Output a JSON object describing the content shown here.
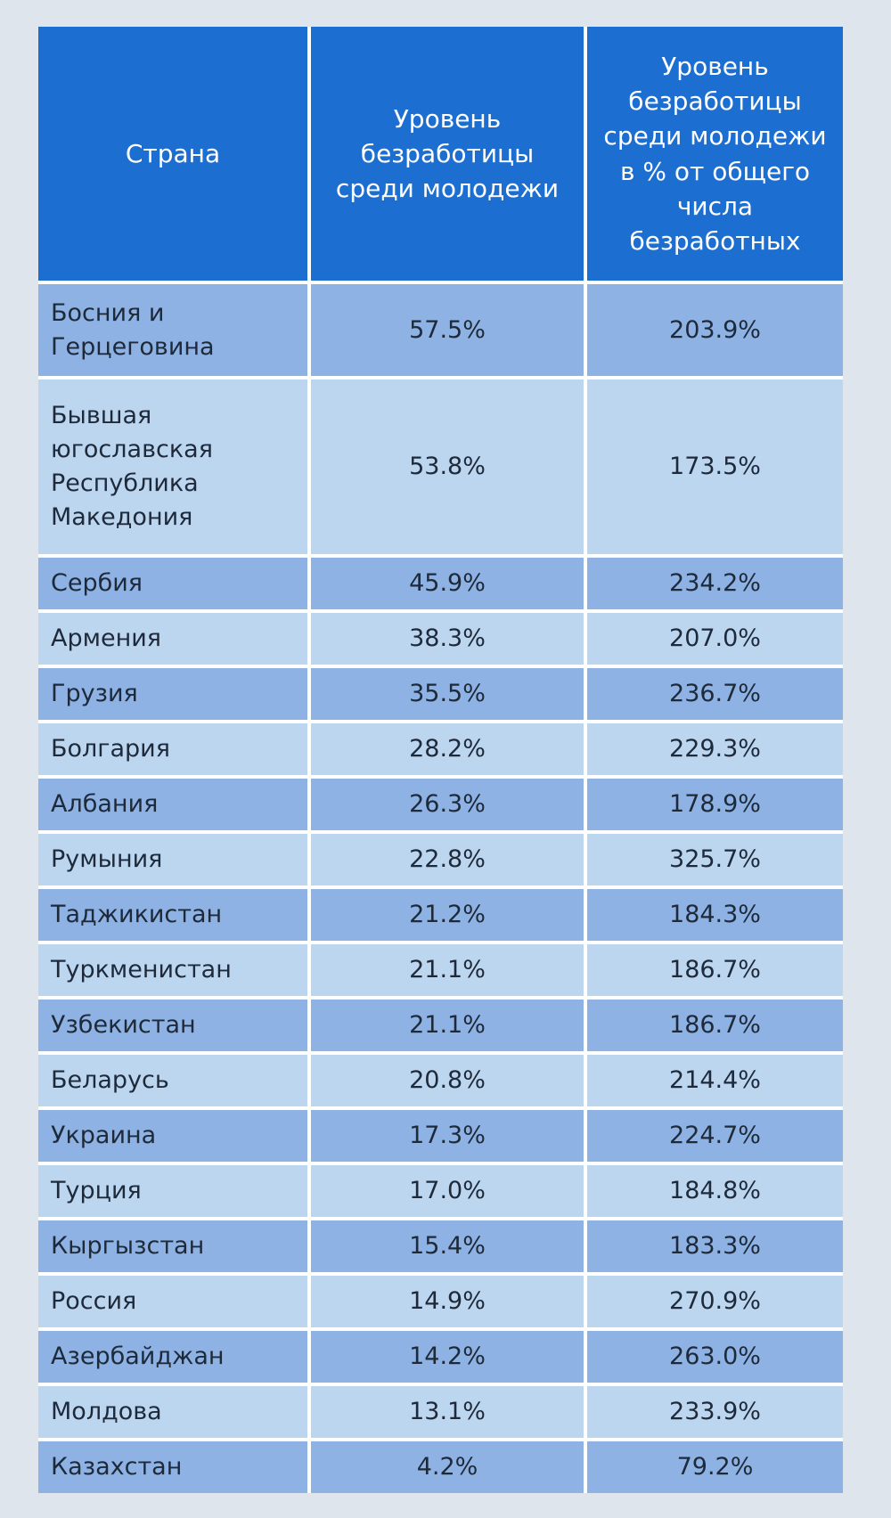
{
  "table": {
    "header": [
      "Страна",
      "Уровень безработицы среди молодежи",
      "Уровень безработицы среди молодежи в % от общего числа безработных"
    ],
    "rows": [
      [
        "Босния и Герцеговина",
        "57.5%",
        "203.9%"
      ],
      [
        "Бывшая югославская Республика Македония",
        "53.8%",
        "173.5%"
      ],
      [
        "Сербия",
        "45.9%",
        "234.2%"
      ],
      [
        "Армения",
        "38.3%",
        "207.0%"
      ],
      [
        "Грузия",
        "35.5%",
        "236.7%"
      ],
      [
        "Болгария",
        "28.2%",
        "229.3%"
      ],
      [
        "Албания",
        "26.3%",
        "178.9%"
      ],
      [
        "Румыния",
        "22.8%",
        "325.7%"
      ],
      [
        "Таджикистан",
        "21.2%",
        "184.3%"
      ],
      [
        "Туркменистан",
        "21.1%",
        "186.7%"
      ],
      [
        "Узбекистан",
        "21.1%",
        "186.7%"
      ],
      [
        "Беларусь",
        "20.8%",
        "214.4%"
      ],
      [
        "Украина",
        "17.3%",
        "224.7%"
      ],
      [
        "Турция",
        "17.0%",
        "184.8%"
      ],
      [
        "Кыргызстан",
        "15.4%",
        "183.3%"
      ],
      [
        "Россия",
        "14.9%",
        "270.9%"
      ],
      [
        "Азербайджан",
        "14.2%",
        "263.0%"
      ],
      [
        "Молдова",
        "13.1%",
        "233.9%"
      ],
      [
        "Казахстан",
        "4.2%",
        "79.2%"
      ]
    ]
  }
}
